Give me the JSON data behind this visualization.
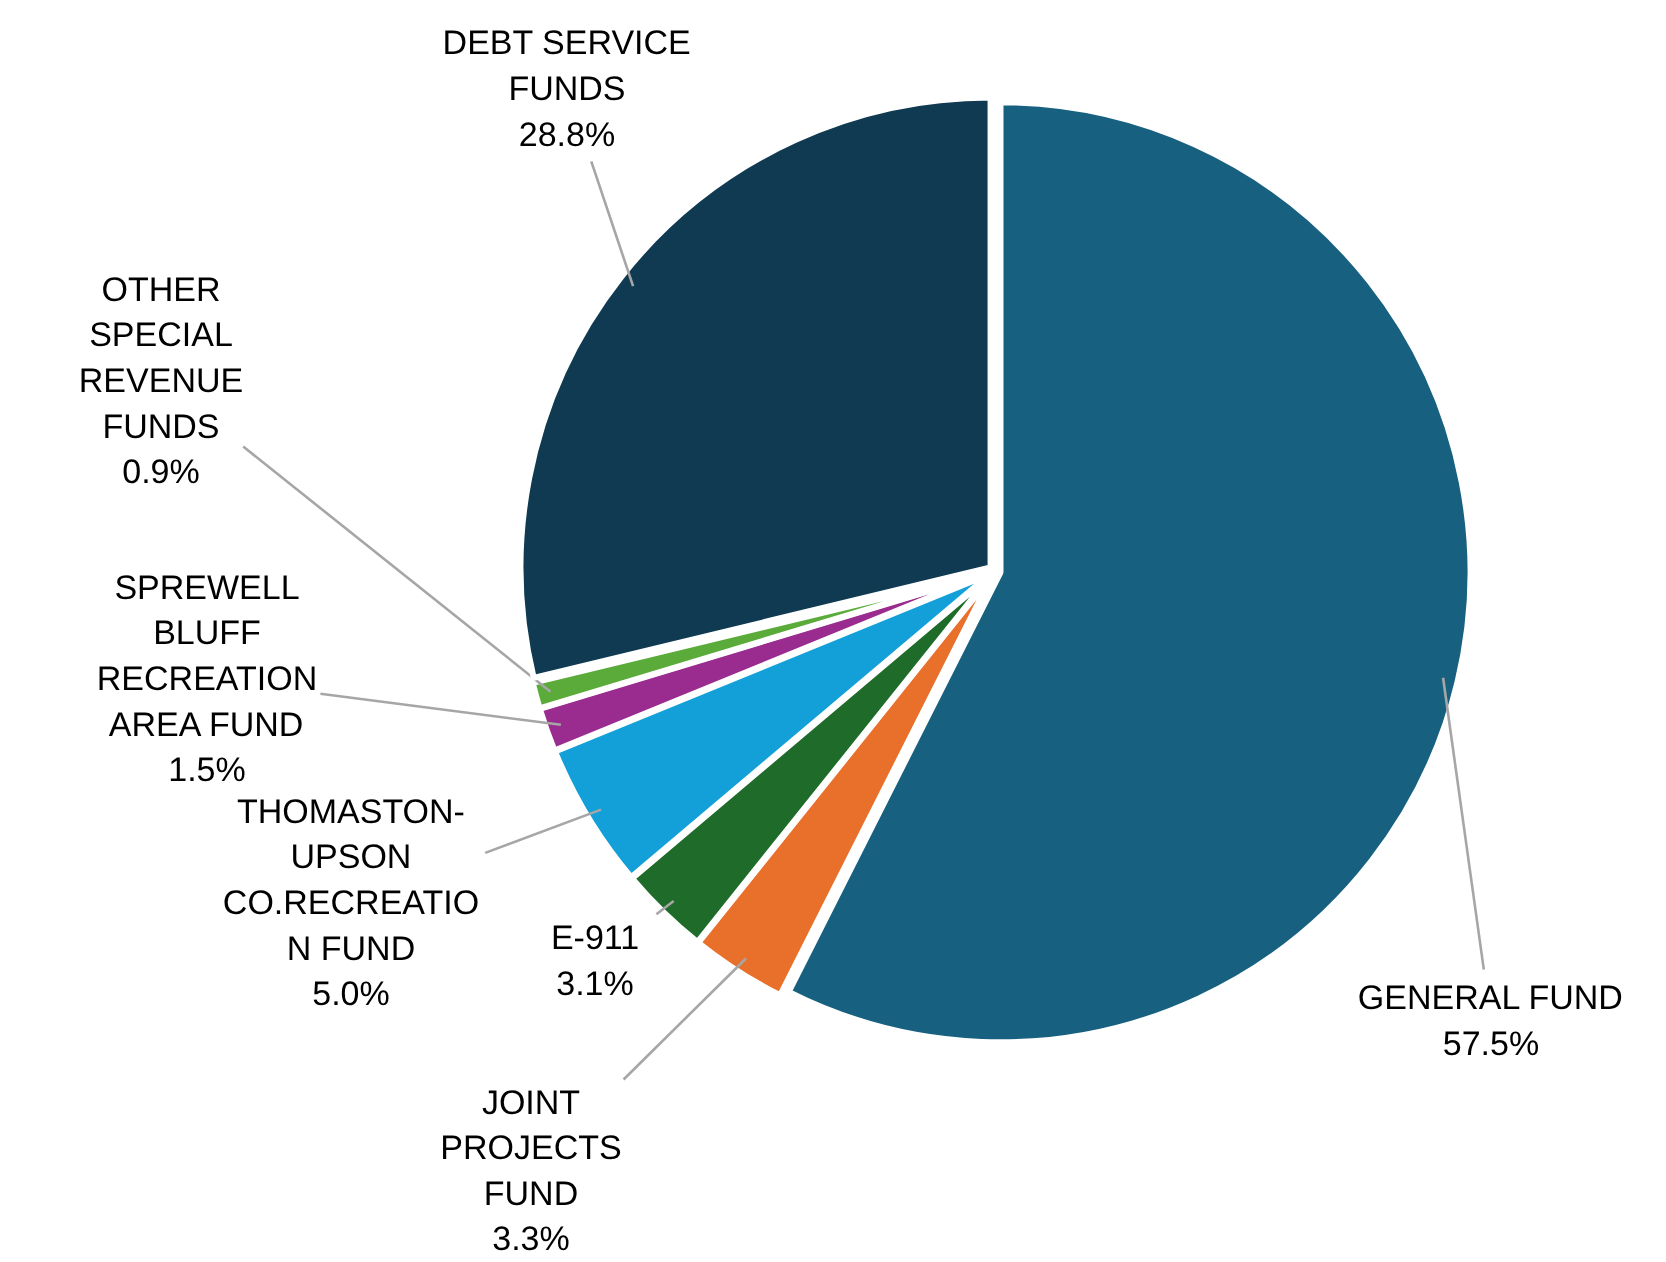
{
  "chart_data": {
    "type": "pie",
    "categories": [
      "GENERAL FUND",
      "JOINT PROJECTS FUND",
      "E-911",
      "THOMASTON-UPSON CO.RECREATION FUND",
      "SPREWELL BLUFF RECREATION AREA FUND",
      "OTHER SPECIAL REVENUE FUNDS",
      "DEBT SERVICE FUNDS"
    ],
    "values": [
      57.5,
      3.3,
      3.1,
      5.0,
      1.5,
      0.9,
      28.8
    ],
    "value_labels": [
      "57.5%",
      "3.3%",
      "3.1%",
      "5.0%",
      "1.5%",
      "0.9%",
      "28.8%"
    ],
    "colors": [
      "#17607f",
      "#e8702a",
      "#1e6b2a",
      "#139fd8",
      "#9a2b8f",
      "#5aab3a",
      "#0f3a52"
    ]
  }
}
